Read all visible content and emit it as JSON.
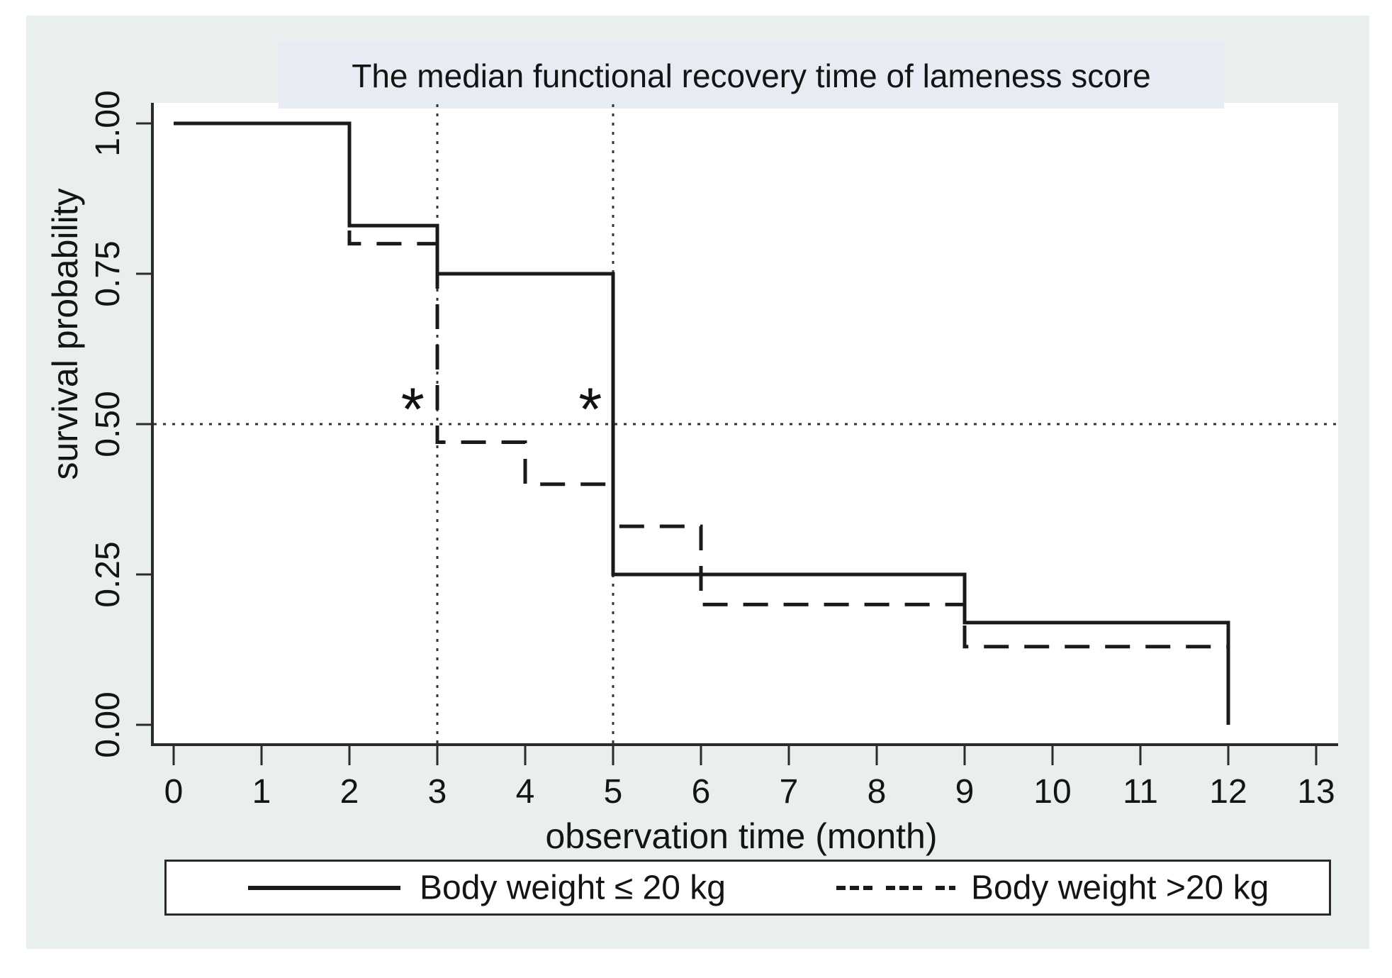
{
  "figure": {
    "title": "The median functional recovery time of lameness score"
  },
  "colors": {
    "figure_bg": "#e9efee",
    "title_band_bg": "#e7ecf4",
    "plot_bg": "#ffffff",
    "series_line": "#1a1a1a",
    "reference_line": "#333333",
    "axis_line": "#2b2b2b"
  },
  "chart_data": {
    "type": "line",
    "subtype": "kaplan-meier-step",
    "title": "The median functional recovery time of lameness score",
    "xlabel": "observation time (month)",
    "ylabel": "survival probability",
    "xlim": [
      0,
      13.25
    ],
    "ylim": [
      0.0,
      1.0
    ],
    "x_ticks": [
      "0",
      "1",
      "2",
      "3",
      "4",
      "5",
      "6",
      "7",
      "8",
      "9",
      "10",
      "11",
      "12",
      "13"
    ],
    "y_ticks": [
      "0.00",
      "0.25",
      "0.50",
      "0.75",
      "1.00"
    ],
    "grid": false,
    "legend_position": "bottom",
    "series": [
      {
        "name": "Body weight ≤ 20 kg",
        "line_style": "solid",
        "points": [
          [
            0,
            1.0
          ],
          [
            2,
            1.0
          ],
          [
            2,
            0.83
          ],
          [
            3,
            0.83
          ],
          [
            3,
            0.75
          ],
          [
            5,
            0.75
          ],
          [
            5,
            0.25
          ],
          [
            9,
            0.25
          ],
          [
            9,
            0.17
          ],
          [
            12,
            0.17
          ],
          [
            12,
            0.0
          ]
        ]
      },
      {
        "name": "Body weight >20 kg",
        "line_style": "dashed",
        "points": [
          [
            0,
            1.0
          ],
          [
            2,
            1.0
          ],
          [
            2,
            0.8
          ],
          [
            3,
            0.8
          ],
          [
            3,
            0.47
          ],
          [
            4,
            0.47
          ],
          [
            4,
            0.4
          ],
          [
            5,
            0.4
          ],
          [
            5,
            0.33
          ],
          [
            6,
            0.33
          ],
          [
            6,
            0.2
          ],
          [
            9,
            0.2
          ],
          [
            9,
            0.13
          ],
          [
            12,
            0.13
          ]
        ]
      }
    ],
    "reference_lines": [
      {
        "orientation": "horizontal",
        "value": 0.5,
        "style": "dotted"
      },
      {
        "orientation": "vertical",
        "value": 3,
        "style": "dotted"
      },
      {
        "orientation": "vertical",
        "value": 5,
        "style": "dotted"
      }
    ],
    "annotations": [
      {
        "text": "*",
        "x": 2.72,
        "y": 0.535
      },
      {
        "text": "*",
        "x": 4.74,
        "y": 0.535
      }
    ]
  },
  "legend": {
    "items": [
      {
        "label": "Body weight ≤ 20 kg",
        "style": "solid"
      },
      {
        "label": "Body weight >20 kg",
        "style": "dashed"
      }
    ]
  }
}
